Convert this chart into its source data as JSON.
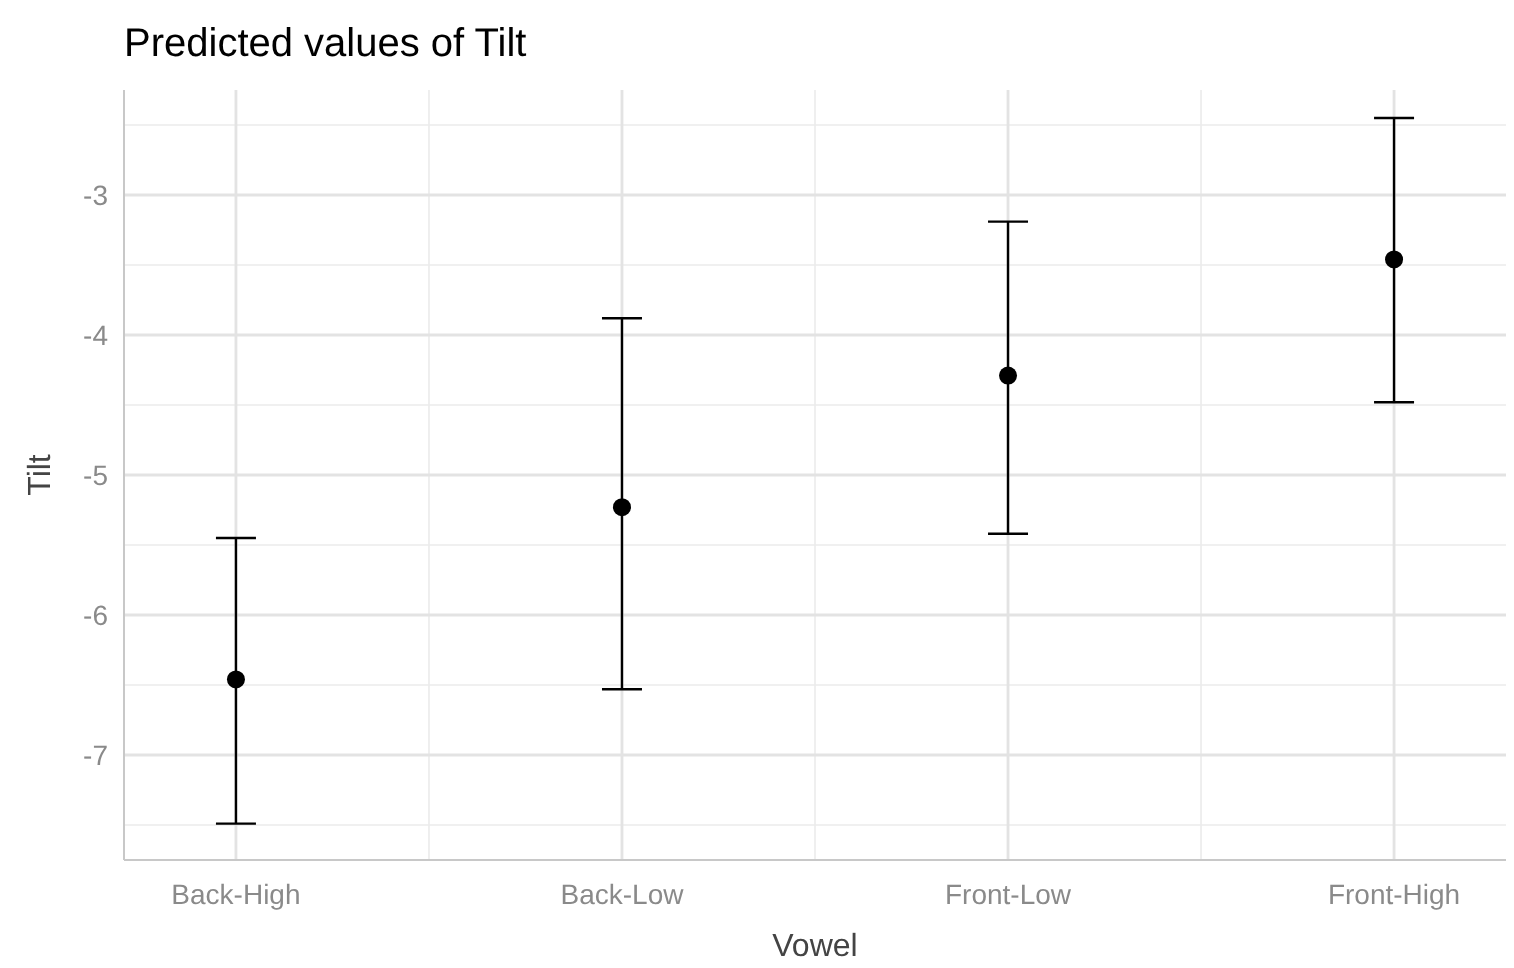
{
  "chart_data": {
    "type": "scatter",
    "title": "Predicted values of Tilt",
    "xlabel": "Vowel",
    "ylabel": "Tilt",
    "categories": [
      "Back-High",
      "Back-Low",
      "Front-Low",
      "Front-High"
    ],
    "series": [
      {
        "color": "#000000",
        "values": [
          -6.46,
          -5.23,
          -4.29,
          -3.46
        ],
        "errors": [
          [
            -7.49,
            -5.45
          ],
          [
            -6.53,
            -3.88
          ],
          [
            -5.42,
            -3.19
          ],
          [
            -4.48,
            -2.45
          ]
        ]
      }
    ],
    "ylim": [
      -7.75,
      -2.25
    ],
    "yticks": [
      -7,
      -6,
      -5,
      -4,
      -3
    ],
    "grid": true,
    "marker": "circle"
  }
}
